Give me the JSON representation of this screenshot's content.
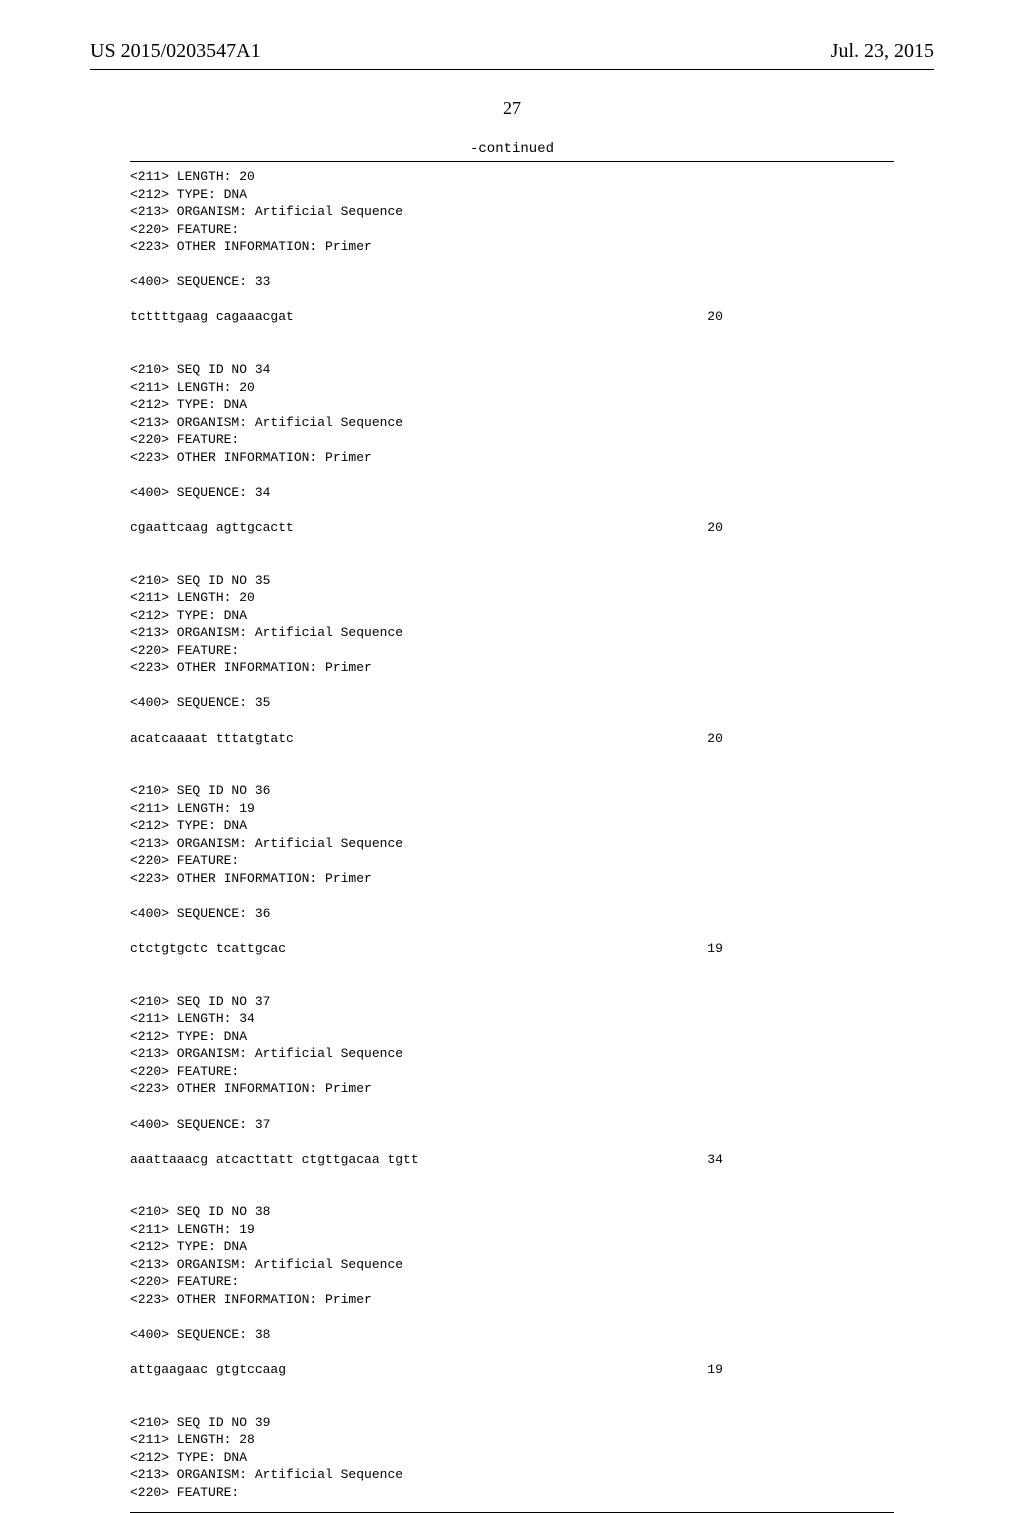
{
  "header": {
    "pub_number": "US 2015/0203547A1",
    "pub_date": "Jul. 23, 2015"
  },
  "page_number": "27",
  "continued_label": "-continued",
  "seq_listing": "<211> LENGTH: 20\n<212> TYPE: DNA\n<213> ORGANISM: Artificial Sequence\n<220> FEATURE:\n<223> OTHER INFORMATION: Primer\n\n<400> SEQUENCE: 33\n\ntcttttgaag cagaaacgat                                                     20\n\n\n<210> SEQ ID NO 34\n<211> LENGTH: 20\n<212> TYPE: DNA\n<213> ORGANISM: Artificial Sequence\n<220> FEATURE:\n<223> OTHER INFORMATION: Primer\n\n<400> SEQUENCE: 34\n\ncgaattcaag agttgcactt                                                     20\n\n\n<210> SEQ ID NO 35\n<211> LENGTH: 20\n<212> TYPE: DNA\n<213> ORGANISM: Artificial Sequence\n<220> FEATURE:\n<223> OTHER INFORMATION: Primer\n\n<400> SEQUENCE: 35\n\nacatcaaaat tttatgtatc                                                     20\n\n\n<210> SEQ ID NO 36\n<211> LENGTH: 19\n<212> TYPE: DNA\n<213> ORGANISM: Artificial Sequence\n<220> FEATURE:\n<223> OTHER INFORMATION: Primer\n\n<400> SEQUENCE: 36\n\nctctgtgctc tcattgcac                                                      19\n\n\n<210> SEQ ID NO 37\n<211> LENGTH: 34\n<212> TYPE: DNA\n<213> ORGANISM: Artificial Sequence\n<220> FEATURE:\n<223> OTHER INFORMATION: Primer\n\n<400> SEQUENCE: 37\n\naaattaaacg atcacttatt ctgttgacaa tgtt                                     34\n\n\n<210> SEQ ID NO 38\n<211> LENGTH: 19\n<212> TYPE: DNA\n<213> ORGANISM: Artificial Sequence\n<220> FEATURE:\n<223> OTHER INFORMATION: Primer\n\n<400> SEQUENCE: 38\n\nattgaagaac gtgtccaag                                                      19\n\n\n<210> SEQ ID NO 39\n<211> LENGTH: 28\n<212> TYPE: DNA\n<213> ORGANISM: Artificial Sequence\n<220> FEATURE:"
}
